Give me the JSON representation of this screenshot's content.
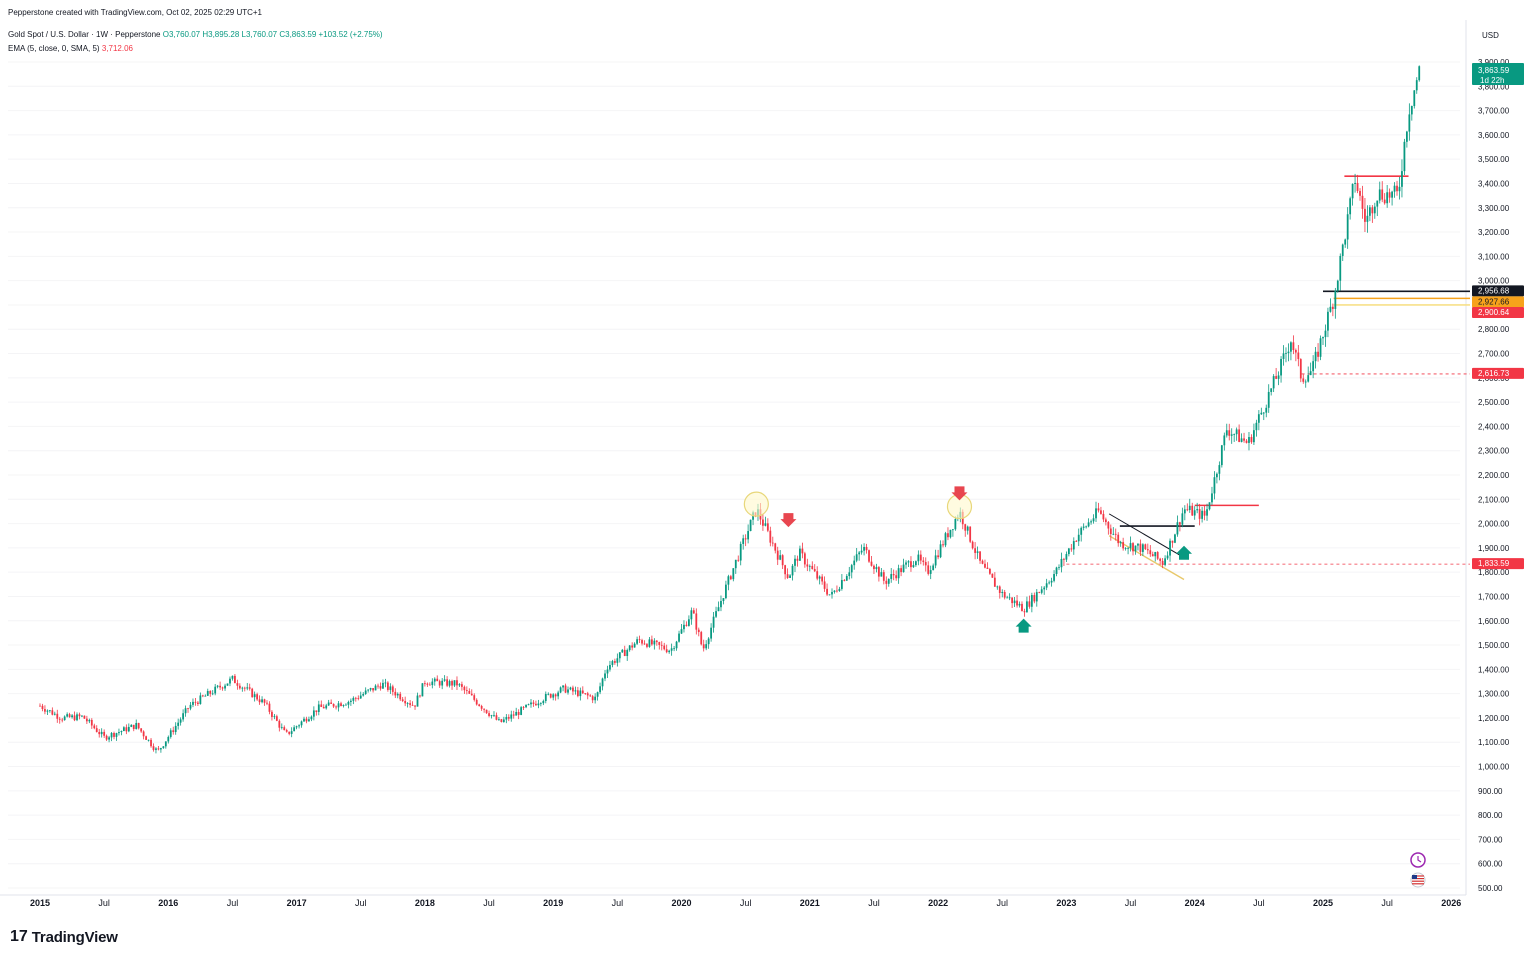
{
  "header": {
    "created_by": "Pepperstone created with TradingView.com, Oct 02, 2025 02:29 UTC+1",
    "symbol": "Gold Spot / U.S. Dollar · 1W · Pepperstone",
    "ohlc_open": "O3,760.07",
    "ohlc_high": "H3,895.28",
    "ohlc_low": "L3,760.07",
    "ohlc_close": "C3,863.59",
    "ohlc_change": "+103.52 (+2.75%)",
    "indicator": "EMA (5, close, 0, SMA, 5)",
    "indicator_value": "3,712.06",
    "currency": "USD"
  },
  "chart_data": {
    "type": "candlestick",
    "title": "Gold Spot / U.S. Dollar · 1W · Pepperstone",
    "ylabel": "USD",
    "ylim": [
      500,
      3900
    ],
    "y_ticks": [
      "3,900.00",
      "3,800.00",
      "3,700.00",
      "3,600.00",
      "3,500.00",
      "3,400.00",
      "3,300.00",
      "3,200.00",
      "3,100.00",
      "3,000.00",
      "2,900.00",
      "2,800.00",
      "2,700.00",
      "2,600.00",
      "2,500.00",
      "2,400.00",
      "2,300.00",
      "2,200.00",
      "2,100.00",
      "2,000.00",
      "1,900.00",
      "1,800.00",
      "1,700.00",
      "1,600.00",
      "1,500.00",
      "1,400.00",
      "1,300.00",
      "1,200.00",
      "1,100.00",
      "1,000.00",
      "900.00",
      "800.00",
      "700.00",
      "600.00",
      "500.00"
    ],
    "x_ticks": [
      "2015",
      "Jul",
      "2016",
      "Jul",
      "2017",
      "Jul",
      "2018",
      "Jul",
      "2019",
      "Jul",
      "2020",
      "Jul",
      "2021",
      "Jul",
      "2022",
      "Jul",
      "2023",
      "Jul",
      "2024",
      "Jul",
      "2025",
      "Jul",
      "2026"
    ],
    "price_path": [
      [
        "2015-01",
        1250
      ],
      [
        "2015-03",
        1200
      ],
      [
        "2015-05",
        1205
      ],
      [
        "2015-07",
        1120
      ],
      [
        "2015-10",
        1170
      ],
      [
        "2015-12",
        1060
      ],
      [
        "2016-03",
        1250
      ],
      [
        "2016-07",
        1360
      ],
      [
        "2016-10",
        1260
      ],
      [
        "2016-12",
        1130
      ],
      [
        "2017-03",
        1240
      ],
      [
        "2017-06",
        1270
      ],
      [
        "2017-09",
        1340
      ],
      [
        "2017-12",
        1250
      ],
      [
        "2018-01",
        1350
      ],
      [
        "2018-04",
        1340
      ],
      [
        "2018-08",
        1180
      ],
      [
        "2018-12",
        1280
      ],
      [
        "2019-02",
        1320
      ],
      [
        "2019-05",
        1280
      ],
      [
        "2019-06",
        1410
      ],
      [
        "2019-09",
        1520
      ],
      [
        "2019-12",
        1480
      ],
      [
        "2020-02",
        1640
      ],
      [
        "2020-03",
        1480
      ],
      [
        "2020-05",
        1720
      ],
      [
        "2020-08",
        2060
      ],
      [
        "2020-11",
        1780
      ],
      [
        "2020-12",
        1880
      ],
      [
        "2021-03",
        1700
      ],
      [
        "2021-06",
        1900
      ],
      [
        "2021-08",
        1760
      ],
      [
        "2021-11",
        1860
      ],
      [
        "2021-12",
        1800
      ],
      [
        "2022-03",
        2050
      ],
      [
        "2022-05",
        1830
      ],
      [
        "2022-07",
        1710
      ],
      [
        "2022-09",
        1650
      ],
      [
        "2022-11",
        1750
      ],
      [
        "2022-12",
        1800
      ],
      [
        "2023-02",
        1950
      ],
      [
        "2023-04",
        2050
      ],
      [
        "2023-06",
        1920
      ],
      [
        "2023-08",
        1900
      ],
      [
        "2023-10",
        1840
      ],
      [
        "2023-12",
        2060
      ],
      [
        "2024-02",
        2030
      ],
      [
        "2024-04",
        2390
      ],
      [
        "2024-06",
        2330
      ],
      [
        "2024-09",
        2640
      ],
      [
        "2024-10",
        2760
      ],
      [
        "2024-11",
        2600
      ],
      [
        "2024-12",
        2630
      ],
      [
        "2025-02",
        2930
      ],
      [
        "2025-04",
        3420
      ],
      [
        "2025-05",
        3240
      ],
      [
        "2025-06",
        3360
      ],
      [
        "2025-08",
        3350
      ],
      [
        "2025-09",
        3700
      ],
      [
        "2025-10",
        3863
      ]
    ],
    "price_badges": [
      {
        "label": "3,863.59",
        "sub": "1d 22h",
        "value": 3863,
        "color": "#089981"
      },
      {
        "label": "2,956.68",
        "value": 2956,
        "color": "#131722"
      },
      {
        "label": "2,927.66",
        "value": 2927,
        "color": "#f7a21b"
      },
      {
        "label": "2,900.64",
        "value": 2900,
        "color": "#f23645"
      },
      {
        "label": "2,616.73",
        "value": 2616,
        "color": "#f23645"
      },
      {
        "label": "1,833.59",
        "value": 1833,
        "color": "#f23645"
      }
    ],
    "horizontal_levels": [
      {
        "value": 2956,
        "x_start": "2025-01",
        "color": "#131722"
      },
      {
        "value": 2927,
        "x_start": "2025-02",
        "color": "#f7a21b"
      },
      {
        "value": 2900,
        "x_start": "2025-02",
        "color": "#f7e08a"
      },
      {
        "value": 2616,
        "x_start": "2024-11",
        "color": "#f23645",
        "dashed": true
      },
      {
        "value": 1833,
        "x_start": "2023-01",
        "color": "#f23645",
        "dashed": true
      },
      {
        "value": 2075,
        "x_start": "2024-01",
        "x_end": "2024-07",
        "color": "#f23645"
      },
      {
        "value": 1990,
        "x_start": "2023-06",
        "x_end": "2024-01",
        "color": "#131722"
      },
      {
        "value": 3430,
        "x_start": "2025-03",
        "x_end": "2025-09",
        "color": "#f23645"
      }
    ],
    "annotations": [
      {
        "type": "circle",
        "x": "2020-08",
        "value": 2080
      },
      {
        "type": "arrow-down",
        "x": "2020-11",
        "value": 2010,
        "color": "#e8464f"
      },
      {
        "type": "circle",
        "x": "2022-03",
        "value": 2070
      },
      {
        "type": "arrow-down",
        "x": "2022-03",
        "value": 2120,
        "color": "#e8464f"
      },
      {
        "type": "arrow-up",
        "x": "2022-09",
        "value": 1580,
        "color": "#089981"
      },
      {
        "type": "arrow-up",
        "x": "2023-12",
        "value": 1880,
        "color": "#089981"
      },
      {
        "type": "channel",
        "x_start": "2023-05",
        "x_end": "2023-12"
      }
    ],
    "event_icons": [
      {
        "name": "clock-event-icon"
      },
      {
        "name": "us-flag-icon"
      }
    ]
  },
  "branding": {
    "logo_glyph": "17",
    "logo_text": "TradingView"
  }
}
